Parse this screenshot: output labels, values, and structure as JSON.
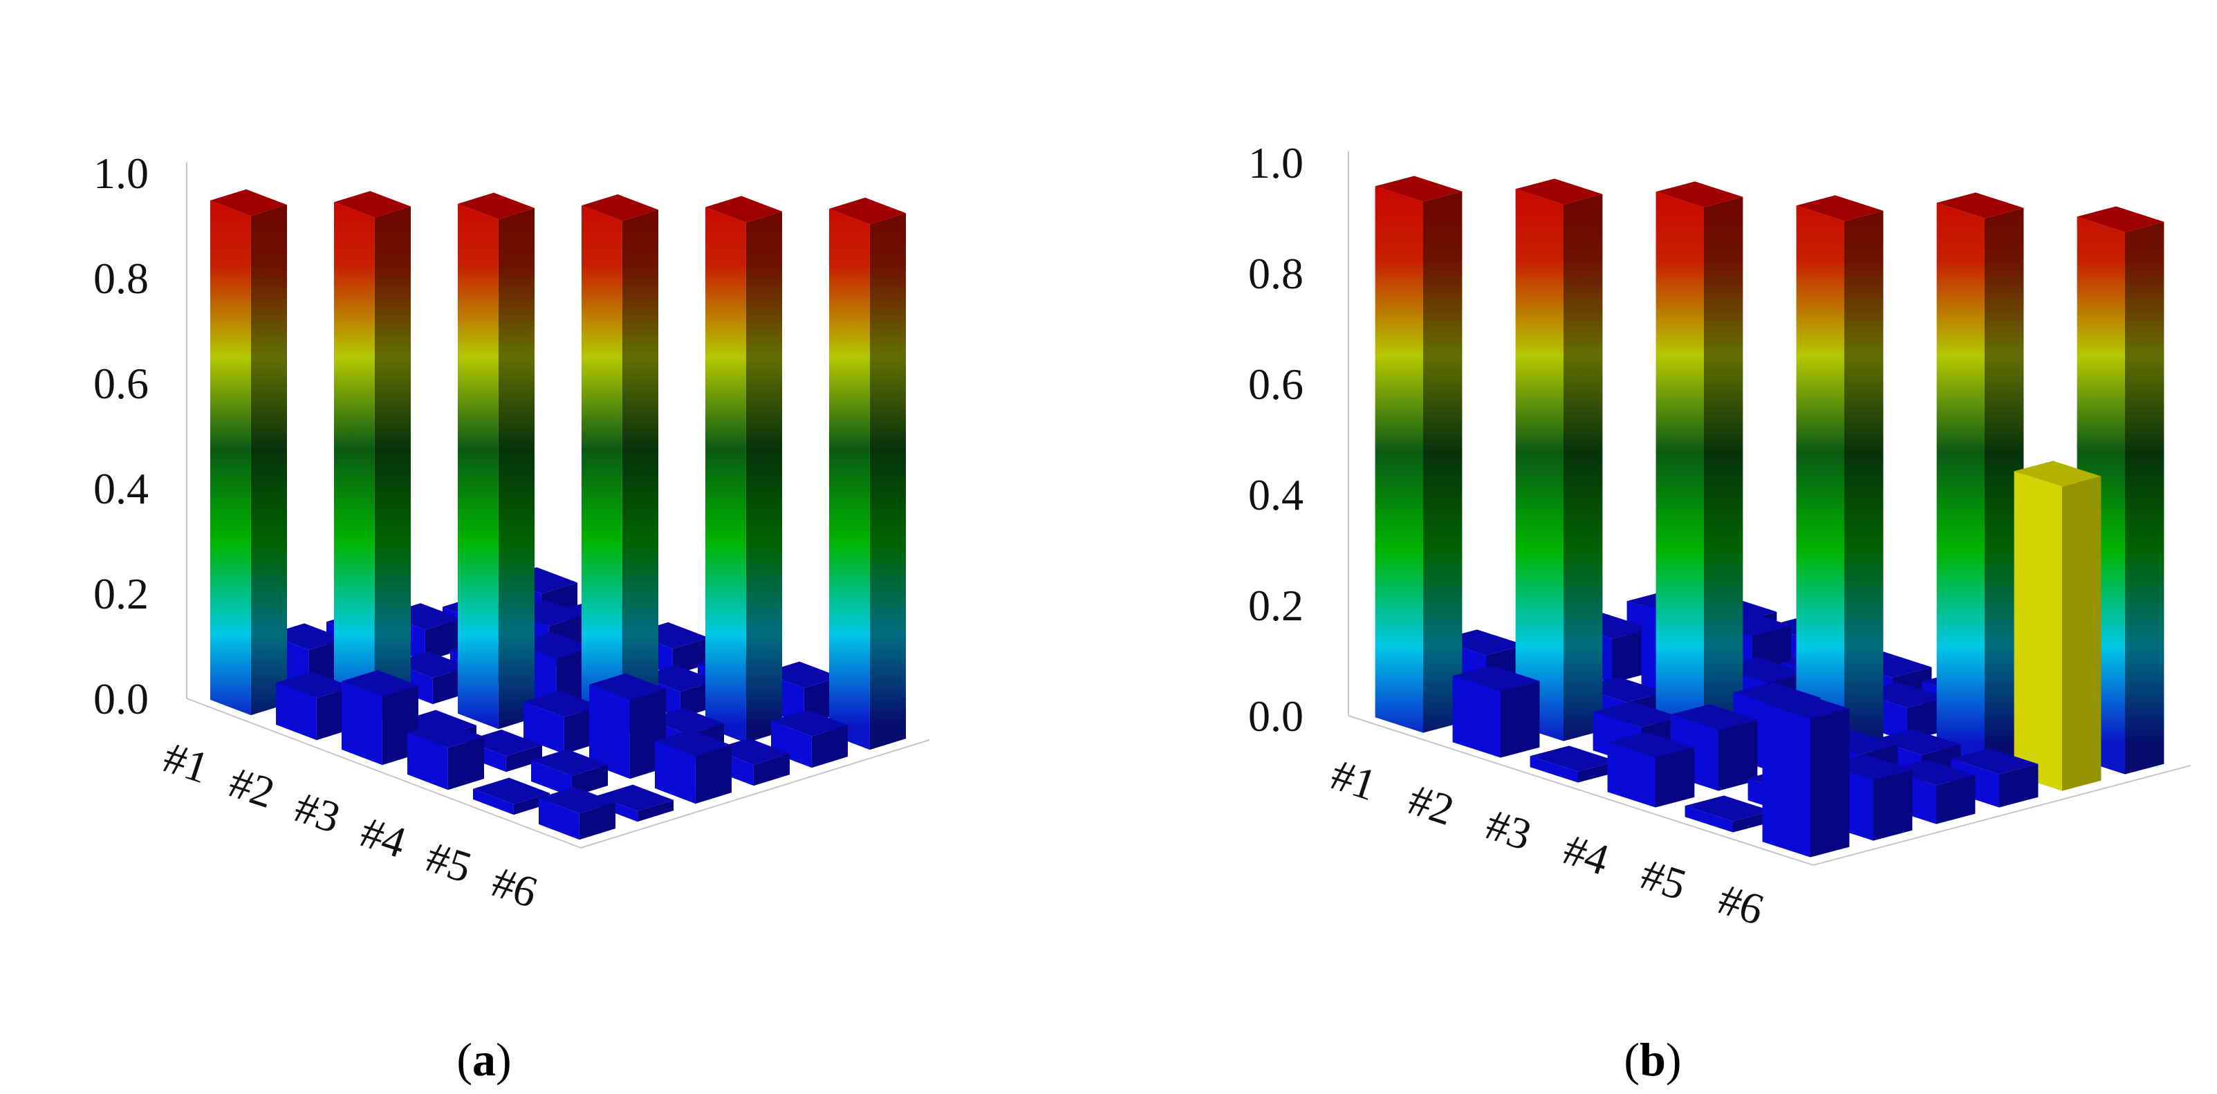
{
  "figure": {
    "panels": [
      {
        "id": "a",
        "label_open": "(",
        "label_letter": "a",
        "label_close": ")"
      },
      {
        "id": "b",
        "label_open": "(",
        "label_letter": "b",
        "label_close": ")"
      }
    ]
  },
  "colors": {
    "off_diagonal_bar": "#0a0ad8",
    "yellow_bar": "#d4d400",
    "colormap": [
      "#0a14c8",
      "#00c8e6",
      "#00b400",
      "#0a5a14",
      "#b4c800",
      "#c81e00",
      "#c80000"
    ]
  },
  "chart_data": [
    {
      "type": "bar3d",
      "panel": "a",
      "title": "",
      "z_ticks": [
        "0.0",
        "0.2",
        "0.4",
        "0.6",
        "0.8",
        "1.0"
      ],
      "zlim": [
        0,
        1.0
      ],
      "row_labels": [
        "#1",
        "#2",
        "#3",
        "#4",
        "#5",
        "#6"
      ],
      "grid": false,
      "matrix": [
        [
          0.95,
          0.09,
          0.08,
          0.06,
          0.04,
          0.06
        ],
        [
          0.08,
          0.96,
          0.05,
          0.04,
          0.08,
          0.05
        ],
        [
          0.13,
          0.02,
          0.97,
          0.1,
          0.06,
          0.05
        ],
        [
          0.08,
          0.03,
          0.07,
          0.98,
          0.05,
          0.04
        ],
        [
          0.02,
          0.04,
          0.15,
          0.05,
          0.99,
          0.07
        ],
        [
          0.05,
          0.02,
          0.09,
          0.04,
          0.06,
          1.0
        ]
      ]
    },
    {
      "type": "bar3d",
      "panel": "b",
      "title": "",
      "z_ticks": [
        "0.0",
        "0.2",
        "0.4",
        "0.6",
        "0.8",
        "1.0"
      ],
      "zlim": [
        0,
        1.0
      ],
      "row_labels": [
        "#1",
        "#2",
        "#3",
        "#4",
        "#5",
        "#6"
      ],
      "grid": false,
      "matrix": [
        [
          0.96,
          0.11,
          0.05,
          0.08,
          0.09,
          0.05
        ],
        [
          0.12,
          0.97,
          0.04,
          0.16,
          0.1,
          0.06
        ],
        [
          0.02,
          0.07,
          0.98,
          0.09,
          0.07,
          0.04
        ],
        [
          0.09,
          0.11,
          0.12,
          0.97,
          0.06,
          0.05
        ],
        [
          0.02,
          0.04,
          0.08,
          0.05,
          0.99,
          0.04
        ],
        [
          0.25,
          0.11,
          0.07,
          0.06,
          0.55,
          0.98
        ]
      ],
      "highlight_cells": [
        [
          5,
          4
        ]
      ]
    }
  ]
}
